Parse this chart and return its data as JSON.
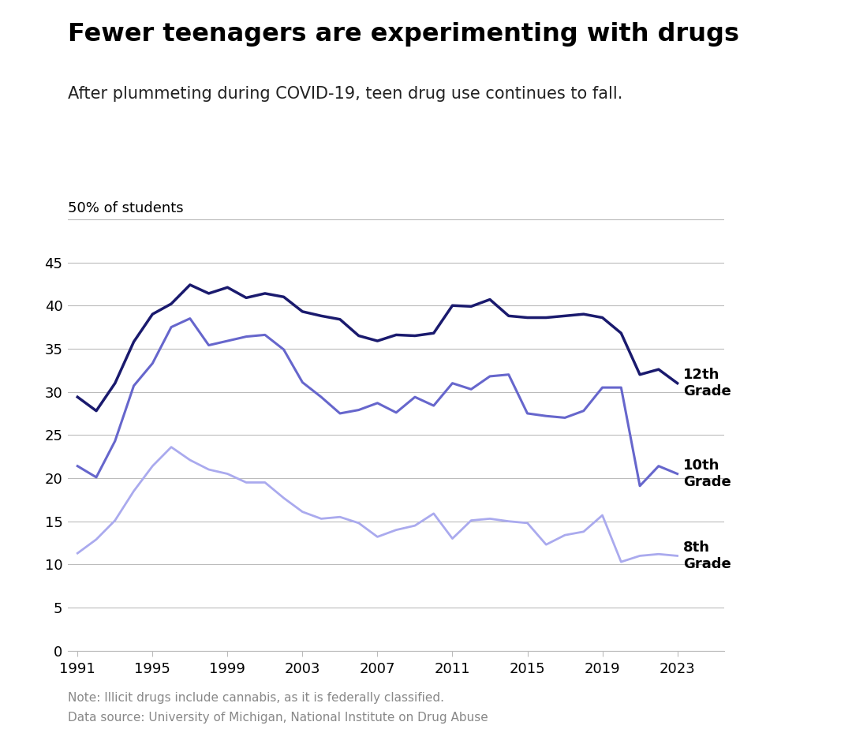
{
  "title": "Fewer teenagers are experimenting with drugs",
  "subtitle": "After plummeting during COVID-19, teen drug use continues to fall.",
  "ylabel": "50% of students",
  "note1": "Note: Illicit drugs include cannabis, as it is federally classified.",
  "note2": "Data source: University of Michigan, National Institute on Drug Abuse",
  "years": [
    1991,
    1992,
    1993,
    1994,
    1995,
    1996,
    1997,
    1998,
    1999,
    2000,
    2001,
    2002,
    2003,
    2004,
    2005,
    2006,
    2007,
    2008,
    2009,
    2010,
    2011,
    2012,
    2013,
    2014,
    2015,
    2016,
    2017,
    2018,
    2019,
    2020,
    2021,
    2022,
    2023
  ],
  "grade12": [
    29.4,
    27.8,
    31.0,
    35.8,
    39.0,
    40.2,
    42.4,
    41.4,
    42.1,
    40.9,
    41.4,
    41.0,
    39.3,
    38.8,
    38.4,
    36.5,
    35.9,
    36.6,
    36.5,
    36.8,
    40.0,
    39.9,
    40.7,
    38.8,
    38.6,
    38.6,
    38.8,
    39.0,
    38.6,
    36.8,
    32.0,
    32.6,
    31.0
  ],
  "grade10": [
    21.4,
    20.1,
    24.3,
    30.7,
    33.3,
    37.5,
    38.5,
    35.4,
    35.9,
    36.4,
    36.6,
    34.9,
    31.1,
    29.4,
    27.5,
    27.9,
    28.7,
    27.6,
    29.4,
    28.4,
    31.0,
    30.3,
    31.8,
    32.0,
    27.5,
    27.2,
    27.0,
    27.8,
    30.5,
    30.5,
    19.1,
    21.4,
    20.5
  ],
  "grade8": [
    11.3,
    12.9,
    15.1,
    18.5,
    21.4,
    23.6,
    22.1,
    21.0,
    20.5,
    19.5,
    19.5,
    17.7,
    16.1,
    15.3,
    15.5,
    14.8,
    13.2,
    14.0,
    14.5,
    15.9,
    13.0,
    15.1,
    15.3,
    15.0,
    14.8,
    12.3,
    13.4,
    13.8,
    15.7,
    10.3,
    11.0,
    11.2,
    11.0
  ],
  "color_12": "#1a1a6e",
  "color_10": "#6666cc",
  "color_8": "#aaaaee",
  "label_color": "#000000",
  "background_color": "#ffffff",
  "grid_color": "#bbbbbb",
  "note_color": "#888888",
  "subtitle_color": "#222222",
  "xticks": [
    1991,
    1995,
    1999,
    2003,
    2007,
    2011,
    2015,
    2019,
    2023
  ],
  "yticks": [
    0,
    5,
    10,
    15,
    20,
    25,
    30,
    35,
    40,
    45,
    50
  ],
  "ylim": [
    0,
    52
  ],
  "xlim": [
    1990.5,
    2025.5
  ]
}
